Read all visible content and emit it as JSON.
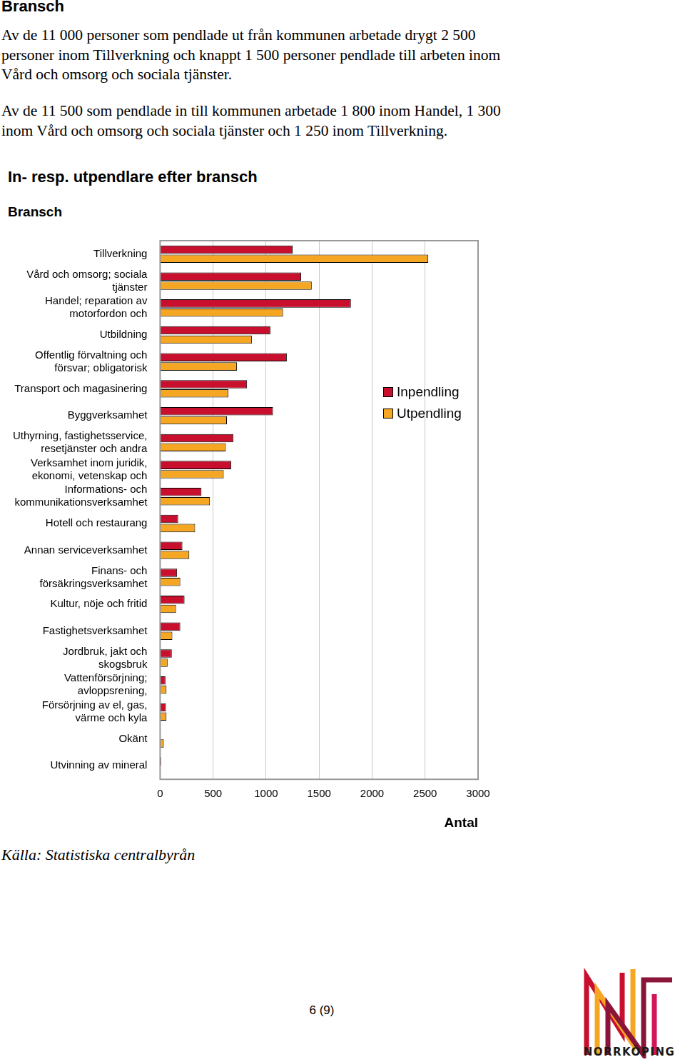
{
  "page": {
    "heading": "Bransch",
    "paragraphs": [
      [
        "Av de 11 000 personer som pendlade ut från kommunen arbetade drygt 2 500",
        "personer inom Tillverkning och knappt 1 500 personer pendlade till arbeten inom",
        "Vård och omsorg och sociala tjänster."
      ],
      [
        "Av de 11 500 som pendlade in till kommunen arbetade 1 800 inom Handel, 1 300",
        "inom Vård och omsorg och sociala tjänster och 1 250 inom Tillverkning."
      ]
    ],
    "source": "Källa: Statistiska centralbyrån",
    "page_number": "6 (9)",
    "logo_text": "NORRKÖPING"
  },
  "chart_data": {
    "type": "bar",
    "orientation": "horizontal",
    "title": "In- resp. utpendlare efter bransch",
    "ylabel": "Bransch",
    "xlabel": "Antal",
    "categories": [
      [
        "Tillverkning"
      ],
      [
        "Vård och omsorg; sociala",
        "tjänster"
      ],
      [
        "Handel; reparation av",
        "motorfordon och"
      ],
      [
        "Utbildning"
      ],
      [
        "Offentlig förvaltning och",
        "försvar; obligatorisk"
      ],
      [
        "Transport och magasinering"
      ],
      [
        "Byggverksamhet"
      ],
      [
        "Uthyrning, fastighetsservice,",
        "resetjänster och andra"
      ],
      [
        "Verksamhet inom juridik,",
        "ekonomi, vetenskap och"
      ],
      [
        "Informations- och",
        "kommunikationsverksamhet"
      ],
      [
        "Hotell och restaurang"
      ],
      [
        "Annan serviceverksamhet"
      ],
      [
        "Finans- och",
        "försäkringsverksamhet"
      ],
      [
        "Kultur, nöje och fritid"
      ],
      [
        "Fastighetsverksamhet"
      ],
      [
        "Jordbruk, jakt och",
        "skogsbruk"
      ],
      [
        "Vattenförsörjning;",
        "avloppsrening,"
      ],
      [
        "Försörjning av el, gas,",
        "värme och kyla"
      ],
      [
        "Okänt"
      ],
      [
        "Utvinning av mineral"
      ]
    ],
    "series": [
      {
        "name": "Inpendling",
        "color": "#c8102e",
        "values": [
          1250,
          1330,
          1800,
          1040,
          1195,
          820,
          1065,
          690,
          670,
          390,
          170,
          210,
          160,
          230,
          190,
          110,
          50,
          55,
          0,
          10
        ]
      },
      {
        "name": "Utpendling",
        "color": "#f5a623",
        "values": [
          2530,
          1430,
          1160,
          865,
          725,
          645,
          630,
          620,
          600,
          470,
          330,
          275,
          190,
          150,
          115,
          70,
          60,
          60,
          35,
          5
        ]
      }
    ],
    "xlim": [
      0,
      3000
    ],
    "xticks": [
      0,
      500,
      1000,
      1500,
      2000,
      2500,
      3000
    ],
    "grid": true,
    "legend": "right",
    "data_labels": false
  }
}
